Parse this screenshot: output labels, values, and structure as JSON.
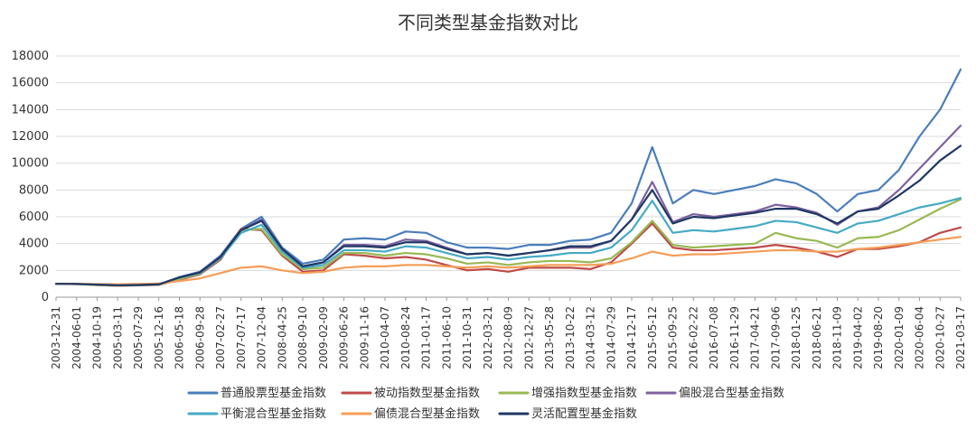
{
  "chart_data": {
    "type": "line",
    "title": "不同类型基金指数对比",
    "x_tick_labels": [
      "2003-12-31",
      "2004-06-01",
      "2004-10-19",
      "2005-03-11",
      "2005-07-29",
      "2005-12-16",
      "2006-05-18",
      "2006-09-28",
      "2007-02-27",
      "2007-07-17",
      "2007-12-04",
      "2008-04-25",
      "2008-09-10",
      "2009-02-09",
      "2009-06-26",
      "2009-11-16",
      "2010-04-07",
      "2010-08-24",
      "2011-01-17",
      "2011-06-10",
      "2011-10-31",
      "2012-03-21",
      "2012-08-09",
      "2012-12-27",
      "2013-05-28",
      "2013-10-22",
      "2014-03-12",
      "2014-07-29",
      "2014-12-17",
      "2015-05-12",
      "2015-09-25",
      "2016-02-22",
      "2016-07-08",
      "2016-11-29",
      "2017-04-21",
      "2017-09-06",
      "2018-01-25",
      "2018-06-21",
      "2018-11-09",
      "2019-04-02",
      "2019-08-20",
      "2020-01-09",
      "2020-06-04",
      "2020-10-27",
      "2021-03-17"
    ],
    "y_ticks": [
      0,
      2000,
      4000,
      6000,
      8000,
      10000,
      12000,
      14000,
      16000,
      18000
    ],
    "ylim": [
      0,
      18000
    ],
    "grid": "horizontal",
    "legend_position": "bottom",
    "series": [
      {
        "name": "普通股票型基金指数",
        "color": "#4A7EBB",
        "values": [
          1000,
          980,
          930,
          880,
          900,
          950,
          1500,
          1900,
          3100,
          5100,
          6000,
          3700,
          2500,
          2800,
          4300,
          4400,
          4300,
          4900,
          4800,
          4100,
          3700,
          3700,
          3600,
          3900,
          3900,
          4200,
          4300,
          4800,
          7000,
          11200,
          7000,
          8000,
          7700,
          8000,
          8300,
          8800,
          8500,
          7700,
          6400,
          7700,
          8000,
          9500,
          12000,
          14000,
          17000
        ]
      },
      {
        "name": "被动指数型基金指数",
        "color": "#BE4B48",
        "values": [
          1000,
          980,
          900,
          850,
          880,
          920,
          1300,
          1700,
          2800,
          5100,
          5000,
          3100,
          1900,
          2000,
          3200,
          3100,
          2900,
          3000,
          2800,
          2400,
          2000,
          2100,
          1900,
          2200,
          2200,
          2200,
          2100,
          2600,
          4000,
          5500,
          3700,
          3500,
          3500,
          3600,
          3700,
          3900,
          3700,
          3400,
          3000,
          3600,
          3600,
          3800,
          4100,
          4800,
          5200
        ]
      },
      {
        "name": "增强指数型基金指数",
        "color": "#98B954",
        "values": [
          1000,
          980,
          910,
          860,
          890,
          940,
          1350,
          1750,
          2900,
          5000,
          5100,
          3200,
          2100,
          2200,
          3300,
          3300,
          3100,
          3300,
          3200,
          2900,
          2500,
          2600,
          2400,
          2600,
          2700,
          2700,
          2600,
          2900,
          4100,
          5700,
          3900,
          3700,
          3800,
          3900,
          4000,
          4800,
          4400,
          4200,
          3700,
          4400,
          4500,
          5000,
          5800,
          6600,
          7300
        ]
      },
      {
        "name": "偏股混合型基金指数",
        "color": "#7D60A0",
        "values": [
          1000,
          990,
          940,
          890,
          910,
          960,
          1480,
          1860,
          3050,
          5000,
          5800,
          3600,
          2300,
          2600,
          3900,
          3900,
          3800,
          4300,
          4200,
          3700,
          3200,
          3300,
          3100,
          3300,
          3500,
          3700,
          3700,
          4200,
          5800,
          8600,
          5600,
          6200,
          6000,
          6200,
          6400,
          6900,
          6700,
          6300,
          5400,
          6400,
          6700,
          8000,
          9600,
          11200,
          12800
        ]
      },
      {
        "name": "平衡混合型基金指数",
        "color": "#46AAC4",
        "values": [
          1000,
          990,
          940,
          890,
          910,
          950,
          1450,
          1800,
          2900,
          4800,
          5400,
          3400,
          2200,
          2400,
          3500,
          3500,
          3400,
          3800,
          3700,
          3300,
          2900,
          3000,
          2800,
          3000,
          3100,
          3300,
          3300,
          3700,
          5000,
          7200,
          4800,
          5000,
          4900,
          5100,
          5300,
          5700,
          5600,
          5200,
          4800,
          5500,
          5700,
          6200,
          6700,
          7000,
          7400
        ]
      },
      {
        "name": "偏债混合型基金指数",
        "color": "#F59D56",
        "values": [
          1000,
          1000,
          980,
          960,
          990,
          1020,
          1200,
          1400,
          1800,
          2200,
          2300,
          2000,
          1800,
          1900,
          2200,
          2300,
          2300,
          2400,
          2400,
          2300,
          2200,
          2300,
          2200,
          2300,
          2400,
          2400,
          2400,
          2500,
          2900,
          3400,
          3100,
          3200,
          3200,
          3300,
          3400,
          3500,
          3500,
          3400,
          3400,
          3600,
          3700,
          3900,
          4100,
          4300,
          4500
        ]
      },
      {
        "name": "灵活配置型基金指数",
        "color": "#1F3864",
        "values": [
          1000,
          990,
          940,
          890,
          910,
          960,
          1470,
          1850,
          3000,
          5000,
          5700,
          3600,
          2300,
          2600,
          3800,
          3800,
          3700,
          4100,
          4100,
          3600,
          3200,
          3300,
          3100,
          3300,
          3500,
          3800,
          3800,
          4200,
          5800,
          8000,
          5500,
          6000,
          5900,
          6100,
          6300,
          6600,
          6600,
          6200,
          5500,
          6400,
          6600,
          7600,
          8700,
          10200,
          11300
        ]
      }
    ]
  }
}
